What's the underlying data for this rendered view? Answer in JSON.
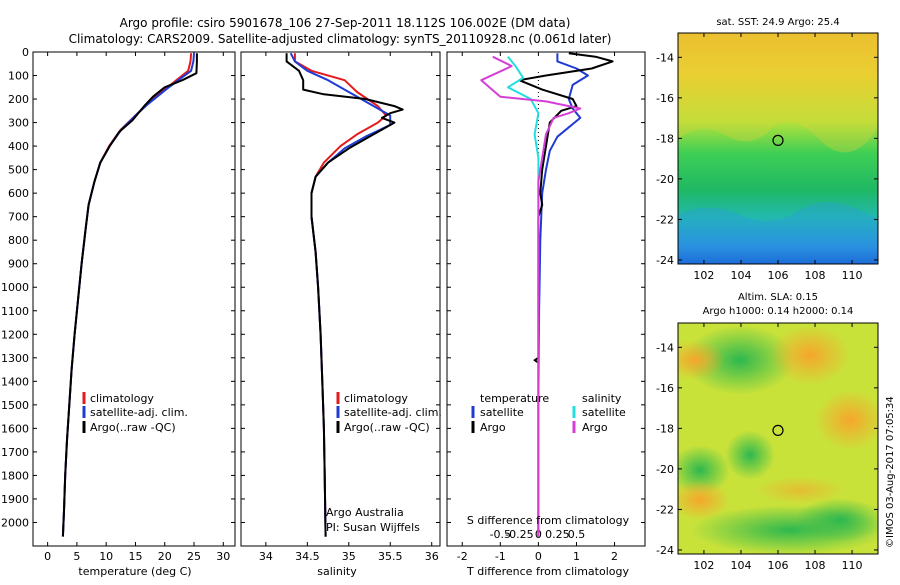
{
  "header": {
    "title_line1": "Argo profile: csiro 5901678_106 27-Sep-2011 18.112S 106.002E (DM data)",
    "title_line2": "Climatology: CARS2009. Satellite-adjusted climatology: synTS_20110928.nc (0.061d later)"
  },
  "footer": {
    "argo_australia": "Argo Australia",
    "pi_name": "PI: Susan Wijffels",
    "imos_stamp": "©IMOS 03-Aug-2017 07:05:34"
  },
  "colors": {
    "climatology": "#e41a1c",
    "satellite_adj": "#1f3bd4",
    "argo": "#000000",
    "salinity_satellite": "#23dede",
    "salinity_argo": "#d53fd5"
  },
  "legend_profiles": [
    "climatology",
    "satellite-adj. clim.",
    "Argo(..raw -QC)"
  ],
  "legend_diff": {
    "temperature_title": "temperature",
    "salinity_title": "salinity",
    "satellite": "satellite",
    "argo": "Argo"
  },
  "sst_map": {
    "title": "sat. SST: 24.9 Argo: 25.4",
    "x_ticks": [
      "102",
      "104",
      "106",
      "108",
      "110"
    ],
    "y_ticks": [
      "-14",
      "-16",
      "-18",
      "-20",
      "-22",
      "-24"
    ],
    "marker": {
      "lon": 106.0,
      "lat": -18.1
    },
    "xlim": [
      100.6,
      111.4
    ],
    "ylim": [
      -24.2,
      -12.8
    ]
  },
  "sla_map": {
    "title_line1": "Altim. SLA: 0.15",
    "title_line2": "Argo h1000: 0.14 h2000: 0.14",
    "x_ticks": [
      "102",
      "104",
      "106",
      "108",
      "110"
    ],
    "y_ticks": [
      "-14",
      "-16",
      "-18",
      "-20",
      "-22",
      "-24"
    ],
    "marker": {
      "lon": 106.0,
      "lat": -18.1
    },
    "xlim": [
      100.6,
      111.4
    ],
    "ylim": [
      -24.2,
      -12.8
    ]
  },
  "chart_data": [
    {
      "type": "line",
      "xlabel": "temperature (deg C)",
      "ylabel": "",
      "xlim": [
        -2.5,
        32
      ],
      "ylim": [
        2100,
        0
      ],
      "x_ticks": [
        0,
        5,
        10,
        15,
        20,
        25,
        30
      ],
      "y_ticks": [
        0,
        100,
        200,
        300,
        400,
        500,
        600,
        700,
        800,
        900,
        1000,
        1100,
        1200,
        1300,
        1400,
        1500,
        1600,
        1700,
        1800,
        1900,
        2000
      ],
      "series": [
        {
          "name": "climatology",
          "color": "#e41a1c",
          "points": [
            [
              24.5,
              5
            ],
            [
              24.4,
              40
            ],
            [
              24.0,
              80
            ],
            [
              22.0,
              120
            ],
            [
              20.0,
              160
            ],
            [
              17.0,
              220
            ],
            [
              15.0,
              270
            ],
            [
              12.5,
              330
            ],
            [
              10.5,
              400
            ],
            [
              9.0,
              470
            ],
            [
              8.0,
              550
            ],
            [
              7.0,
              650
            ],
            [
              6.5,
              750
            ],
            [
              5.8,
              900
            ],
            [
              5.2,
              1050
            ],
            [
              4.6,
              1200
            ],
            [
              4.1,
              1350
            ],
            [
              3.7,
              1500
            ],
            [
              3.3,
              1650
            ],
            [
              3.0,
              1800
            ],
            [
              2.8,
              1950
            ],
            [
              2.6,
              2060
            ]
          ]
        },
        {
          "name": "satellite-adj. clim.",
          "color": "#1f3bd4",
          "points": [
            [
              25.0,
              5
            ],
            [
              24.9,
              40
            ],
            [
              24.5,
              80
            ],
            [
              22.3,
              120
            ],
            [
              20.2,
              160
            ],
            [
              17.2,
              220
            ],
            [
              15.0,
              270
            ],
            [
              12.6,
              330
            ],
            [
              10.6,
              400
            ],
            [
              9.0,
              470
            ],
            [
              8.0,
              550
            ],
            [
              7.0,
              650
            ],
            [
              6.5,
              750
            ],
            [
              5.8,
              900
            ],
            [
              5.2,
              1050
            ],
            [
              4.6,
              1200
            ],
            [
              4.1,
              1350
            ],
            [
              3.7,
              1500
            ],
            [
              3.3,
              1650
            ],
            [
              3.0,
              1800
            ],
            [
              2.8,
              1950
            ],
            [
              2.6,
              2060
            ]
          ]
        },
        {
          "name": "Argo(..raw -QC)",
          "color": "#000000",
          "points": [
            [
              25.5,
              5
            ],
            [
              25.5,
              40
            ],
            [
              25.4,
              90
            ],
            [
              23.0,
              120
            ],
            [
              20.0,
              150
            ],
            [
              18.0,
              190
            ],
            [
              16.5,
              230
            ],
            [
              14.5,
              290
            ],
            [
              12.2,
              340
            ],
            [
              10.6,
              400
            ],
            [
              9.0,
              470
            ],
            [
              8.0,
              550
            ],
            [
              7.0,
              650
            ],
            [
              6.5,
              750
            ],
            [
              5.8,
              900
            ],
            [
              5.2,
              1050
            ],
            [
              4.6,
              1200
            ],
            [
              4.1,
              1350
            ],
            [
              3.7,
              1500
            ],
            [
              3.3,
              1650
            ],
            [
              3.0,
              1800
            ],
            [
              2.8,
              1950
            ],
            [
              2.6,
              2060
            ]
          ]
        }
      ]
    },
    {
      "type": "line",
      "xlabel": "salinity",
      "ylabel": "",
      "xlim": [
        33.7,
        36.1
      ],
      "ylim": [
        2100,
        0
      ],
      "x_ticks": [
        34,
        34.5,
        35,
        35.5,
        36
      ],
      "series": [
        {
          "name": "climatology",
          "color": "#e41a1c",
          "points": [
            [
              34.35,
              5
            ],
            [
              34.35,
              40
            ],
            [
              34.55,
              80
            ],
            [
              34.95,
              120
            ],
            [
              35.1,
              170
            ],
            [
              35.35,
              230
            ],
            [
              35.45,
              270
            ],
            [
              35.35,
              300
            ],
            [
              35.1,
              350
            ],
            [
              34.9,
              400
            ],
            [
              34.7,
              470
            ],
            [
              34.6,
              530
            ],
            [
              34.55,
              600
            ],
            [
              34.55,
              700
            ],
            [
              34.6,
              850
            ],
            [
              34.63,
              1000
            ],
            [
              34.66,
              1200
            ],
            [
              34.68,
              1400
            ],
            [
              34.7,
              1600
            ],
            [
              34.71,
              1800
            ],
            [
              34.72,
              2060
            ]
          ]
        },
        {
          "name": "satellite-adj. clim.",
          "color": "#1f3bd4",
          "points": [
            [
              34.3,
              5
            ],
            [
              34.35,
              40
            ],
            [
              34.5,
              80
            ],
            [
              34.75,
              120
            ],
            [
              35.0,
              170
            ],
            [
              35.3,
              230
            ],
            [
              35.5,
              270
            ],
            [
              35.5,
              310
            ],
            [
              35.2,
              360
            ],
            [
              34.95,
              410
            ],
            [
              34.75,
              470
            ],
            [
              34.6,
              530
            ],
            [
              34.55,
              600
            ],
            [
              34.55,
              700
            ],
            [
              34.6,
              850
            ],
            [
              34.63,
              1000
            ],
            [
              34.66,
              1200
            ],
            [
              34.68,
              1400
            ],
            [
              34.7,
              1600
            ],
            [
              34.71,
              1800
            ],
            [
              34.72,
              2060
            ]
          ]
        },
        {
          "name": "Argo(..raw -QC)",
          "color": "#000000",
          "points": [
            [
              34.25,
              5
            ],
            [
              34.25,
              40
            ],
            [
              34.4,
              80
            ],
            [
              34.45,
              120
            ],
            [
              34.45,
              160
            ],
            [
              34.7,
              180
            ],
            [
              35.2,
              200
            ],
            [
              35.55,
              230
            ],
            [
              35.65,
              245
            ],
            [
              35.5,
              260
            ],
            [
              35.4,
              280
            ],
            [
              35.55,
              300
            ],
            [
              35.3,
              350
            ],
            [
              35.0,
              410
            ],
            [
              34.75,
              470
            ],
            [
              34.6,
              530
            ],
            [
              34.55,
              600
            ],
            [
              34.55,
              700
            ],
            [
              34.6,
              850
            ],
            [
              34.63,
              1000
            ],
            [
              34.66,
              1200
            ],
            [
              34.68,
              1400
            ],
            [
              34.7,
              1600
            ],
            [
              34.71,
              1800
            ],
            [
              34.72,
              2060
            ]
          ]
        }
      ]
    },
    {
      "type": "line",
      "xlabel": "T difference from climatology",
      "top_label": "S difference from climatology",
      "xlim": [
        -2.4,
        2.8
      ],
      "ylim": [
        2100,
        0
      ],
      "x_ticks": [
        -2,
        -1,
        0,
        1,
        2
      ],
      "s_ticks": [
        {
          "label": "-0.5",
          "value": -1.0
        },
        {
          "label": "-0.25",
          "value": -0.5
        },
        {
          "label": "0",
          "value": 0
        },
        {
          "label": "0.25",
          "value": 0.5
        },
        {
          "label": "0.5",
          "value": 1.0
        }
      ],
      "series": [
        {
          "name": "temperature satellite",
          "color": "#1f3bd4",
          "points": [
            [
              0.5,
              5
            ],
            [
              0.5,
              40
            ],
            [
              1.0,
              70
            ],
            [
              1.3,
              100
            ],
            [
              0.9,
              140
            ],
            [
              0.8,
              200
            ],
            [
              0.9,
              240
            ],
            [
              1.1,
              280
            ],
            [
              0.8,
              320
            ],
            [
              0.5,
              360
            ],
            [
              0.3,
              420
            ],
            [
              0.2,
              500
            ],
            [
              0.1,
              600
            ],
            [
              0.05,
              800
            ],
            [
              0.02,
              1100
            ],
            [
              0.0,
              1500
            ],
            [
              0.0,
              2060
            ]
          ]
        },
        {
          "name": "temperature Argo",
          "color": "#000000",
          "points": [
            [
              0.8,
              5
            ],
            [
              1.5,
              20
            ],
            [
              1.95,
              40
            ],
            [
              1.4,
              70
            ],
            [
              0.2,
              100
            ],
            [
              -0.5,
              120
            ],
            [
              0.1,
              160
            ],
            [
              0.9,
              200
            ],
            [
              1.0,
              230
            ],
            [
              0.6,
              250
            ],
            [
              0.3,
              300
            ],
            [
              0.2,
              400
            ],
            [
              0.1,
              500
            ],
            [
              0.05,
              600
            ],
            [
              0.1,
              650
            ],
            [
              0.0,
              700
            ],
            [
              0.0,
              1300
            ],
            [
              -0.1,
              1310
            ],
            [
              0.0,
              1320
            ],
            [
              0.0,
              2060
            ]
          ]
        },
        {
          "name": "salinity satellite",
          "color": "#23dede",
          "points": [
            [
              -0.8,
              20
            ],
            [
              -0.6,
              60
            ],
            [
              -0.4,
              110
            ],
            [
              -0.8,
              150
            ],
            [
              -0.2,
              200
            ],
            [
              0.0,
              260
            ],
            [
              -0.1,
              350
            ],
            [
              0.0,
              450
            ],
            [
              0.0,
              2060
            ]
          ]
        },
        {
          "name": "salinity Argo",
          "color": "#d53fd5",
          "points": [
            [
              -1.2,
              20
            ],
            [
              -0.7,
              60
            ],
            [
              -1.5,
              120
            ],
            [
              -1.0,
              190
            ],
            [
              0.2,
              210
            ],
            [
              1.1,
              240
            ],
            [
              0.8,
              260
            ],
            [
              0.4,
              280
            ],
            [
              0.2,
              350
            ],
            [
              0.1,
              450
            ],
            [
              0.0,
              550
            ],
            [
              0.0,
              2060
            ]
          ]
        }
      ]
    }
  ]
}
